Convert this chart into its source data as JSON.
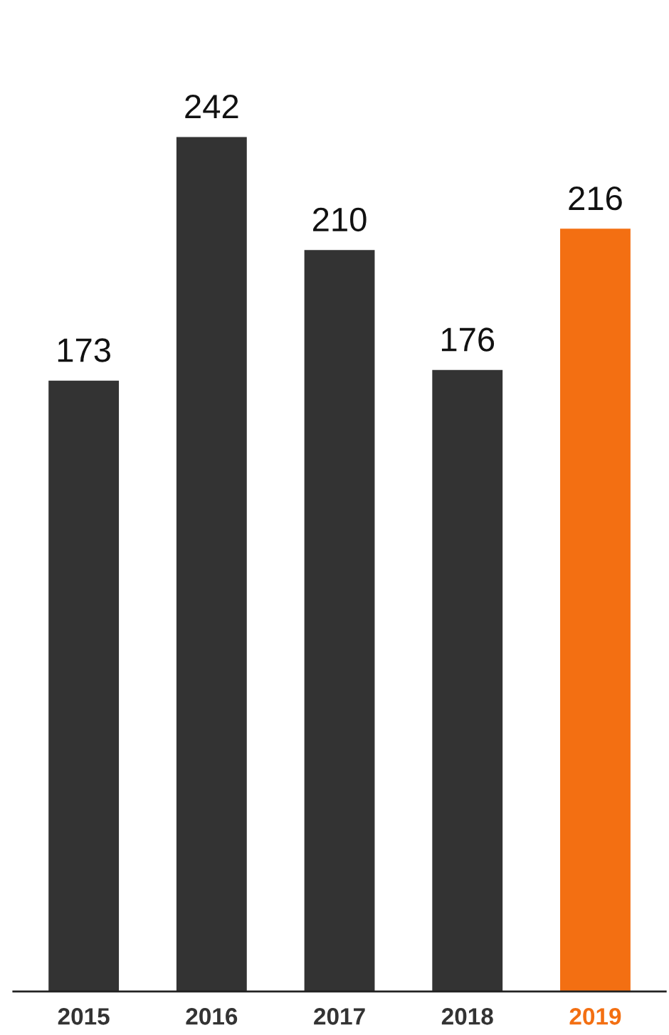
{
  "chart_data": {
    "type": "bar",
    "categories": [
      "2015",
      "2016",
      "2017",
      "2018",
      "2019"
    ],
    "values": [
      173,
      242,
      210,
      176,
      216
    ],
    "colors": [
      "#333333",
      "#333333",
      "#333333",
      "#333333",
      "#f36f12"
    ],
    "data_labels": true,
    "tick_labels": "x",
    "grid": false,
    "legend": false
  }
}
